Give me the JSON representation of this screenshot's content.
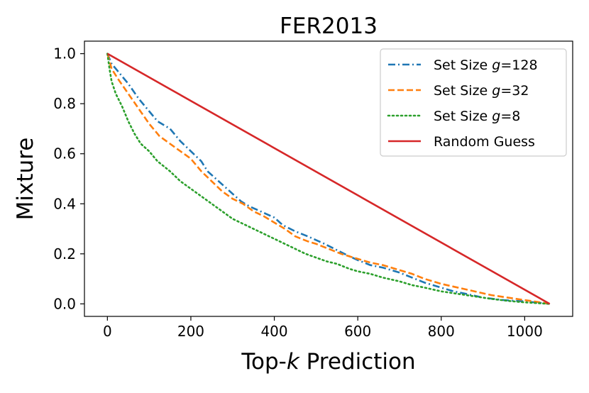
{
  "chart_data": {
    "type": "line",
    "title": "FER2013",
    "xlabel_prefix": "Top-",
    "xlabel_var": "k",
    "xlabel_suffix": " Prediction",
    "ylabel": "Mixture",
    "xlim": [
      -55,
      1115
    ],
    "ylim": [
      -0.05,
      1.05
    ],
    "xticks": [
      0,
      200,
      400,
      600,
      800,
      1000
    ],
    "yticks": [
      0.0,
      0.2,
      0.4,
      0.6,
      0.8,
      1.0
    ],
    "ytick_labels": [
      "0.0",
      "0.2",
      "0.4",
      "0.6",
      "0.8",
      "1.0"
    ],
    "legend_position": "top-right",
    "series": [
      {
        "name_prefix": "Set Size ",
        "name_var": "g",
        "name_suffix": "=128",
        "color": "#1f77b4",
        "style": "dashdot",
        "points": [
          [
            0,
            1.0
          ],
          [
            10,
            0.96
          ],
          [
            25,
            0.93
          ],
          [
            50,
            0.88
          ],
          [
            75,
            0.82
          ],
          [
            100,
            0.77
          ],
          [
            120,
            0.73
          ],
          [
            150,
            0.7
          ],
          [
            175,
            0.65
          ],
          [
            200,
            0.61
          ],
          [
            225,
            0.57
          ],
          [
            240,
            0.53
          ],
          [
            260,
            0.5
          ],
          [
            280,
            0.47
          ],
          [
            300,
            0.44
          ],
          [
            320,
            0.41
          ],
          [
            340,
            0.39
          ],
          [
            360,
            0.375
          ],
          [
            380,
            0.36
          ],
          [
            400,
            0.345
          ],
          [
            420,
            0.315
          ],
          [
            450,
            0.29
          ],
          [
            480,
            0.27
          ],
          [
            500,
            0.255
          ],
          [
            520,
            0.24
          ],
          [
            550,
            0.215
          ],
          [
            580,
            0.19
          ],
          [
            600,
            0.175
          ],
          [
            630,
            0.155
          ],
          [
            660,
            0.145
          ],
          [
            700,
            0.125
          ],
          [
            730,
            0.105
          ],
          [
            760,
            0.085
          ],
          [
            800,
            0.065
          ],
          [
            830,
            0.05
          ],
          [
            860,
            0.04
          ],
          [
            900,
            0.025
          ],
          [
            950,
            0.015
          ],
          [
            1000,
            0.01
          ],
          [
            1030,
            0.005
          ],
          [
            1060,
            0.0
          ]
        ]
      },
      {
        "name_prefix": "Set Size ",
        "name_var": "g",
        "name_suffix": "=32",
        "color": "#ff7f0e",
        "style": "dashed",
        "points": [
          [
            0,
            1.0
          ],
          [
            10,
            0.94
          ],
          [
            25,
            0.9
          ],
          [
            50,
            0.84
          ],
          [
            75,
            0.78
          ],
          [
            100,
            0.72
          ],
          [
            125,
            0.67
          ],
          [
            150,
            0.64
          ],
          [
            175,
            0.61
          ],
          [
            200,
            0.58
          ],
          [
            225,
            0.53
          ],
          [
            250,
            0.49
          ],
          [
            275,
            0.45
          ],
          [
            300,
            0.42
          ],
          [
            325,
            0.4
          ],
          [
            350,
            0.37
          ],
          [
            375,
            0.35
          ],
          [
            400,
            0.325
          ],
          [
            425,
            0.3
          ],
          [
            450,
            0.27
          ],
          [
            480,
            0.25
          ],
          [
            500,
            0.24
          ],
          [
            530,
            0.22
          ],
          [
            560,
            0.2
          ],
          [
            600,
            0.18
          ],
          [
            630,
            0.165
          ],
          [
            660,
            0.155
          ],
          [
            700,
            0.135
          ],
          [
            730,
            0.12
          ],
          [
            760,
            0.1
          ],
          [
            800,
            0.08
          ],
          [
            840,
            0.065
          ],
          [
            880,
            0.05
          ],
          [
            920,
            0.035
          ],
          [
            960,
            0.025
          ],
          [
            1000,
            0.015
          ],
          [
            1030,
            0.008
          ],
          [
            1060,
            0.0
          ]
        ]
      },
      {
        "name_prefix": "Set Size ",
        "name_var": "g",
        "name_suffix": "=8",
        "color": "#2ca02c",
        "style": "dotted",
        "points": [
          [
            0,
            1.0
          ],
          [
            5,
            0.94
          ],
          [
            10,
            0.89
          ],
          [
            20,
            0.84
          ],
          [
            35,
            0.79
          ],
          [
            50,
            0.73
          ],
          [
            65,
            0.68
          ],
          [
            80,
            0.64
          ],
          [
            100,
            0.61
          ],
          [
            120,
            0.57
          ],
          [
            150,
            0.53
          ],
          [
            175,
            0.49
          ],
          [
            200,
            0.46
          ],
          [
            225,
            0.43
          ],
          [
            250,
            0.4
          ],
          [
            275,
            0.37
          ],
          [
            300,
            0.34
          ],
          [
            325,
            0.32
          ],
          [
            350,
            0.3
          ],
          [
            375,
            0.28
          ],
          [
            400,
            0.26
          ],
          [
            425,
            0.24
          ],
          [
            450,
            0.22
          ],
          [
            475,
            0.2
          ],
          [
            500,
            0.185
          ],
          [
            525,
            0.17
          ],
          [
            550,
            0.16
          ],
          [
            580,
            0.14
          ],
          [
            600,
            0.13
          ],
          [
            630,
            0.12
          ],
          [
            660,
            0.105
          ],
          [
            700,
            0.09
          ],
          [
            730,
            0.075
          ],
          [
            760,
            0.065
          ],
          [
            800,
            0.05
          ],
          [
            840,
            0.04
          ],
          [
            880,
            0.03
          ],
          [
            920,
            0.02
          ],
          [
            960,
            0.012
          ],
          [
            1000,
            0.006
          ],
          [
            1030,
            0.003
          ],
          [
            1060,
            0.0
          ]
        ]
      },
      {
        "name": "Random Guess",
        "color": "#d62728",
        "style": "solid",
        "points": [
          [
            0,
            1.0
          ],
          [
            1060,
            0.0
          ]
        ]
      }
    ]
  }
}
